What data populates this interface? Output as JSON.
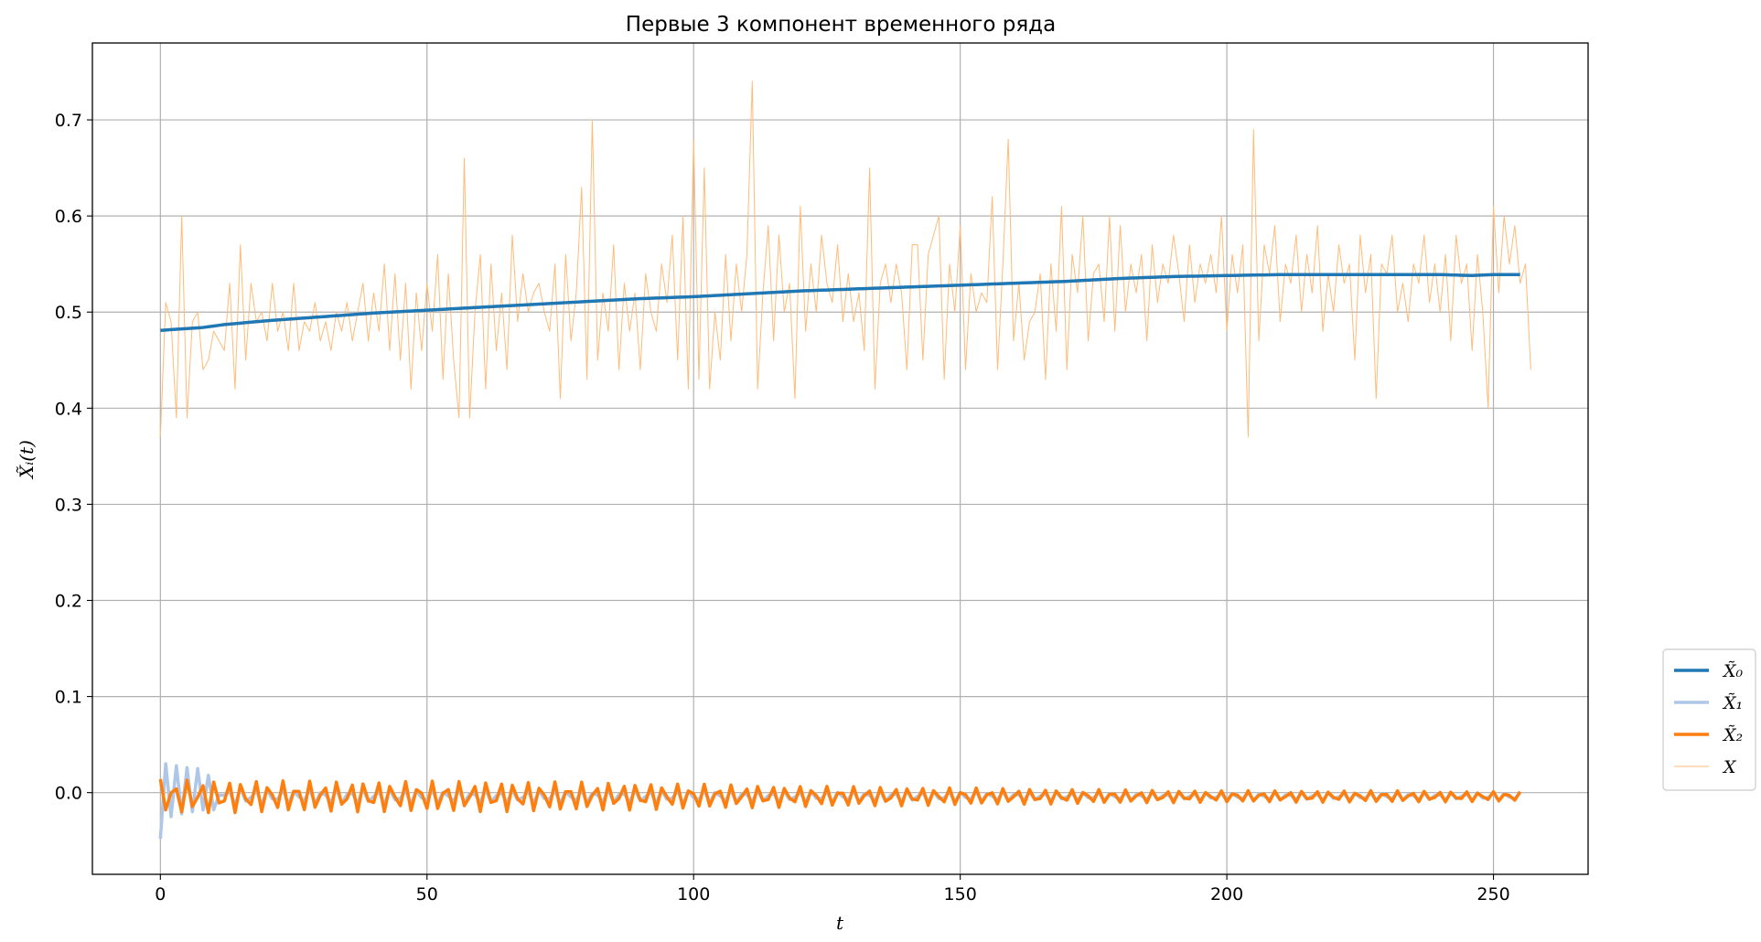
{
  "chart_data": {
    "type": "line",
    "title": "Первые 3 компонент временного ряда",
    "xlabel": "t",
    "ylabel": "X̃ᵢ(t)",
    "xlim": [
      -12.75,
      267.75
    ],
    "ylim": [
      -0.085,
      0.78
    ],
    "xticks": [
      0,
      50,
      100,
      150,
      200,
      250
    ],
    "yticks": [
      0.0,
      0.1,
      0.2,
      0.3,
      0.4,
      0.5,
      0.6,
      0.7
    ],
    "ytick_labels": [
      "0.0",
      "0.1",
      "0.2",
      "0.3",
      "0.4",
      "0.5",
      "0.6",
      "0.7"
    ],
    "grid": true,
    "legend_position": "outside-right-bottom",
    "series": [
      {
        "name": "X̃₀",
        "color": "#1f77b4",
        "kind": "trend",
        "x": [
          0,
          8,
          12,
          20,
          30,
          40,
          50,
          60,
          70,
          80,
          90,
          100,
          110,
          120,
          130,
          140,
          150,
          160,
          170,
          180,
          190,
          200,
          210,
          220,
          230,
          240,
          246,
          250,
          255
        ],
        "y": [
          0.481,
          0.484,
          0.487,
          0.491,
          0.495,
          0.499,
          0.502,
          0.505,
          0.508,
          0.511,
          0.514,
          0.516,
          0.519,
          0.522,
          0.524,
          0.526,
          0.528,
          0.53,
          0.532,
          0.535,
          0.537,
          0.538,
          0.539,
          0.539,
          0.539,
          0.539,
          0.538,
          0.539,
          0.539
        ]
      },
      {
        "name": "X̃₁",
        "color": "#aec7e8",
        "kind": "oscillation",
        "x": [
          0,
          1,
          2,
          3,
          4,
          5,
          6,
          7,
          8,
          9,
          10,
          12,
          20,
          40,
          60,
          80,
          100,
          120,
          140,
          160,
          180,
          200,
          220,
          240,
          250,
          255
        ],
        "y": [
          -0.048,
          0.03,
          -0.025,
          0.028,
          -0.022,
          0.026,
          -0.02,
          0.025,
          -0.018,
          0.018,
          -0.014,
          0.01,
          0.008,
          0.008,
          0.007,
          0.007,
          0.007,
          0.006,
          0.006,
          0.005,
          0.004,
          0.004,
          0.004,
          0.004,
          0.004,
          0.004
        ]
      },
      {
        "name": "X̃₂",
        "color": "#ff7f0e",
        "kind": "oscillation",
        "x": [
          0,
          10,
          30,
          60,
          80,
          100,
          120,
          150,
          180,
          200,
          230,
          255
        ],
        "y": [
          0.018,
          0.017,
          0.016,
          0.016,
          0.015,
          0.013,
          0.011,
          0.009,
          0.007,
          0.006,
          0.006,
          0.005
        ]
      },
      {
        "name": "X",
        "color": "#ffbb78",
        "kind": "raw",
        "x_start": 0,
        "x_step": 1,
        "y": [
          0.37,
          0.51,
          0.49,
          0.39,
          0.6,
          0.39,
          0.49,
          0.5,
          0.44,
          0.45,
          0.48,
          0.47,
          0.46,
          0.53,
          0.42,
          0.57,
          0.45,
          0.53,
          0.49,
          0.5,
          0.47,
          0.53,
          0.48,
          0.5,
          0.46,
          0.53,
          0.46,
          0.49,
          0.48,
          0.51,
          0.47,
          0.49,
          0.46,
          0.5,
          0.48,
          0.51,
          0.47,
          0.5,
          0.53,
          0.47,
          0.52,
          0.48,
          0.55,
          0.46,
          0.54,
          0.45,
          0.53,
          0.42,
          0.52,
          0.46,
          0.53,
          0.48,
          0.56,
          0.43,
          0.54,
          0.45,
          0.39,
          0.66,
          0.39,
          0.5,
          0.56,
          0.42,
          0.55,
          0.46,
          0.52,
          0.44,
          0.58,
          0.49,
          0.54,
          0.5,
          0.52,
          0.53,
          0.5,
          0.48,
          0.55,
          0.41,
          0.56,
          0.47,
          0.52,
          0.63,
          0.43,
          0.7,
          0.45,
          0.52,
          0.48,
          0.57,
          0.44,
          0.53,
          0.48,
          0.52,
          0.44,
          0.54,
          0.5,
          0.48,
          0.55,
          0.51,
          0.58,
          0.45,
          0.6,
          0.42,
          0.68,
          0.43,
          0.65,
          0.42,
          0.5,
          0.45,
          0.56,
          0.47,
          0.55,
          0.5,
          0.56,
          0.74,
          0.42,
          0.52,
          0.59,
          0.47,
          0.58,
          0.5,
          0.53,
          0.41,
          0.61,
          0.48,
          0.55,
          0.5,
          0.58,
          0.53,
          0.51,
          0.57,
          0.49,
          0.54,
          0.49,
          0.52,
          0.46,
          0.65,
          0.42,
          0.53,
          0.55,
          0.51,
          0.55,
          0.52,
          0.44,
          0.57,
          0.57,
          0.45,
          0.56,
          0.58,
          0.6,
          0.43,
          0.55,
          0.5,
          0.59,
          0.44,
          0.54,
          0.5,
          0.52,
          0.51,
          0.62,
          0.44,
          0.55,
          0.68,
          0.47,
          0.53,
          0.45,
          0.49,
          0.5,
          0.54,
          0.43,
          0.55,
          0.48,
          0.61,
          0.44,
          0.56,
          0.52,
          0.6,
          0.47,
          0.54,
          0.55,
          0.49,
          0.6,
          0.48,
          0.59,
          0.5,
          0.55,
          0.52,
          0.56,
          0.47,
          0.57,
          0.51,
          0.55,
          0.53,
          0.58,
          0.54,
          0.49,
          0.57,
          0.51,
          0.55,
          0.53,
          0.56,
          0.52,
          0.6,
          0.48,
          0.56,
          0.52,
          0.57,
          0.37,
          0.69,
          0.47,
          0.57,
          0.54,
          0.59,
          0.49,
          0.55,
          0.53,
          0.58,
          0.5,
          0.56,
          0.52,
          0.59,
          0.48,
          0.54,
          0.5,
          0.57,
          0.53,
          0.55,
          0.45,
          0.58,
          0.52,
          0.56,
          0.41,
          0.55,
          0.54,
          0.58,
          0.5,
          0.53,
          0.49,
          0.55,
          0.53,
          0.58,
          0.51,
          0.55,
          0.5,
          0.56,
          0.47,
          0.58,
          0.53,
          0.55,
          0.46,
          0.56,
          0.5,
          0.4,
          0.61,
          0.52,
          0.6,
          0.55,
          0.59,
          0.53,
          0.55,
          0.44
        ]
      }
    ]
  }
}
